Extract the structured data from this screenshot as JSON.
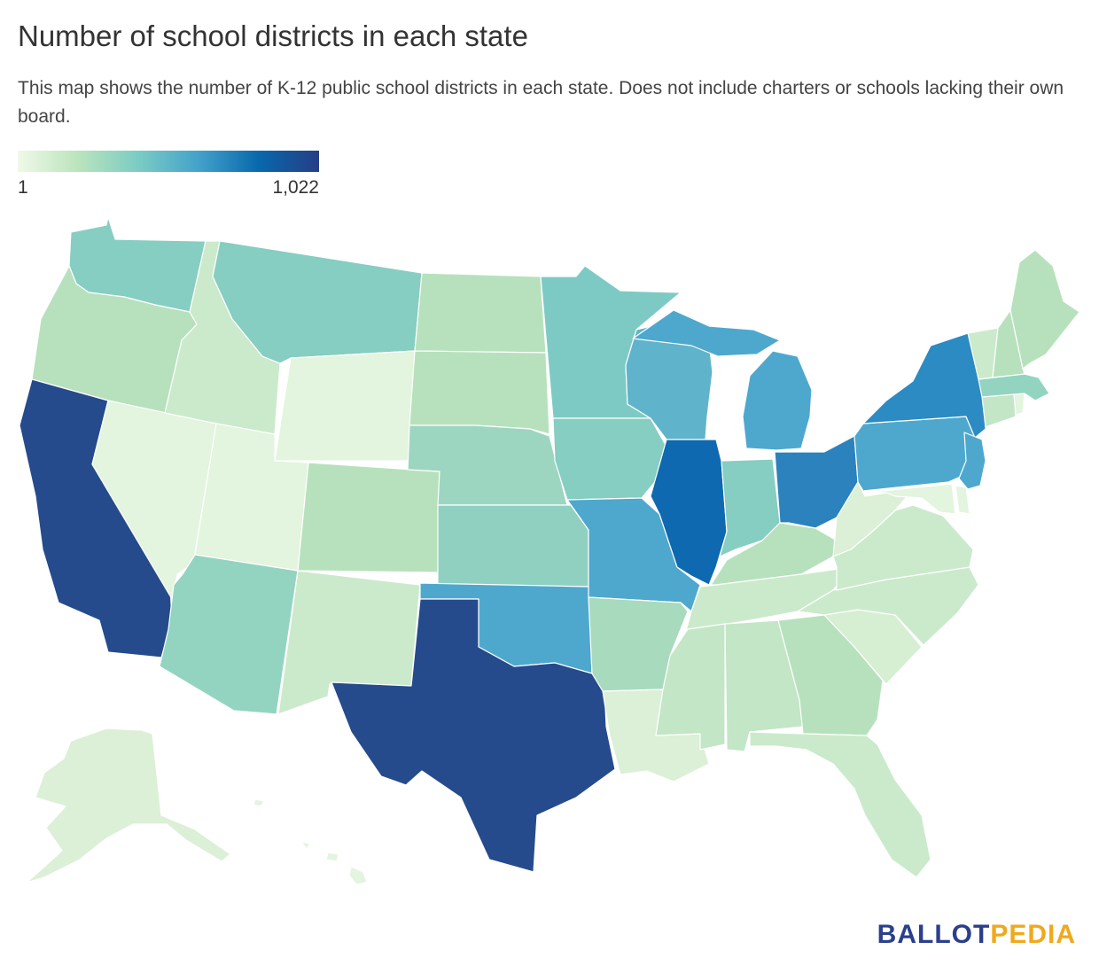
{
  "title": "Number of school districts in each state",
  "subtitle": "This map shows the number of K-12 public school districts in each state. Does not include charters or schools lacking their own board.",
  "legend": {
    "min_label": "1",
    "max_label": "1,022",
    "colors": [
      "#f0f9e8",
      "#bae4bc",
      "#7bccc4",
      "#43a2ca",
      "#0868ac",
      "#253e86"
    ]
  },
  "brand": {
    "part1": "BALLOT",
    "part2": "PEDIA",
    "color1": "#2b3f8c",
    "color2": "#f0a91c"
  },
  "states": {
    "WA": "#86cdc2",
    "OR": "#b7e1bd",
    "CA": "#254b8c",
    "NV": "#e3f4df",
    "ID": "#cbeacc",
    "MT": "#86cdc2",
    "WY": "#e3f4df",
    "UT": "#e3f4df",
    "AZ": "#93d4c1",
    "NM": "#cbeacc",
    "CO": "#b7e1bd",
    "ND": "#b7e1bd",
    "SD": "#b7e1bd",
    "NE": "#9dd6c0",
    "KS": "#8fd0c1",
    "OK": "#4ea8cd",
    "TX": "#254b8c",
    "MN": "#7dcac4",
    "IA": "#86cdc2",
    "MO": "#4ea8cd",
    "AR": "#a8dabe",
    "LA": "#dbf0d6",
    "WI": "#5fb4cc",
    "IL": "#0e69b0",
    "MI": "#4ea8cd",
    "IN": "#86cdc2",
    "OH": "#2c82bd",
    "KY": "#b7e1bd",
    "TN": "#cbeacc",
    "MS": "#c3e6c6",
    "AL": "#c3e6c6",
    "GA": "#b7e1bd",
    "FL": "#cbeacc",
    "SC": "#d6eed2",
    "NC": "#cbeacc",
    "VA": "#cbeacc",
    "WV": "#dbf0d6",
    "PA": "#4ea8cd",
    "NY": "#2c8bc2",
    "NJ": "#4ea8cd",
    "DE": "#e3f4df",
    "MD": "#e3f4df",
    "CT": "#c3e6c6",
    "RI": "#e3f4df",
    "MA": "#93d4c1",
    "VT": "#cbeacc",
    "NH": "#b7e1bd",
    "ME": "#b7e1bd",
    "AK": "#dbf0d6",
    "HI": "#e3f4df"
  }
}
